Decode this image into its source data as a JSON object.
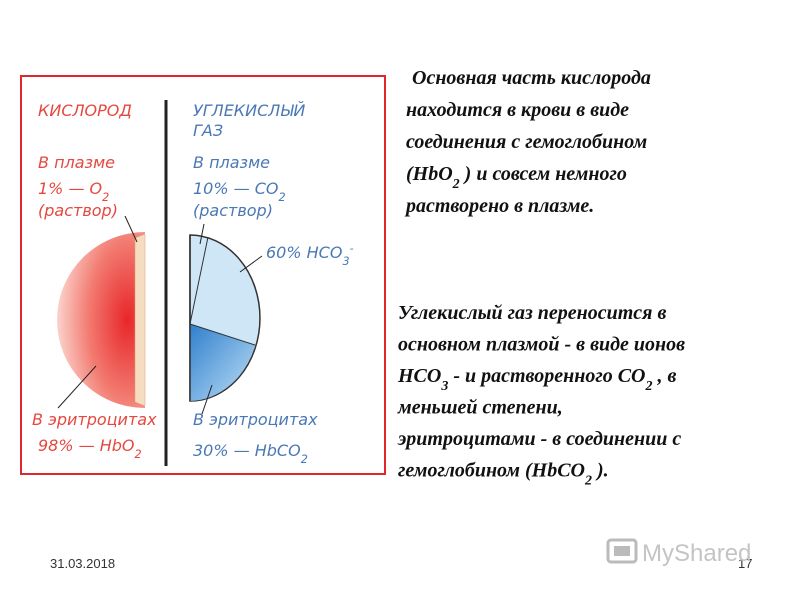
{
  "diagram": {
    "oxygen": {
      "title": [
        {
          "text": "КИСЛОРОД"
        }
      ],
      "plasma": [
        {
          "text": "В плазме"
        }
      ],
      "plasma_share": [
        {
          "text": "1% — O"
        },
        {
          "text": "2",
          "pos": "sub"
        }
      ],
      "plasma_form": [
        {
          "text": "(раствор)"
        }
      ],
      "cells": [
        {
          "text": "В эритроцитах"
        }
      ],
      "cells_share": [
        {
          "text": "98% — HbO"
        },
        {
          "text": "2",
          "pos": "sub"
        }
      ]
    },
    "carbon_dioxide": {
      "title": [
        {
          "text": "УГЛЕКИСЛЫЙ"
        }
      ],
      "title_2": [
        {
          "text": "ГАЗ"
        }
      ],
      "plasma": [
        {
          "text": "В плазме"
        }
      ],
      "plasma_share": [
        {
          "text": "10% — CO"
        },
        {
          "text": "2",
          "pos": "sub"
        }
      ],
      "plasma_form": [
        {
          "text": "(раствор)"
        }
      ],
      "bicarbonate": [
        {
          "text": "60% HCO"
        },
        {
          "text": "3",
          "pos": "sub"
        },
        {
          "text": "-",
          "pos": "sup"
        }
      ],
      "cells": [
        {
          "text": "В эритроцитах"
        }
      ],
      "cells_share": [
        {
          "text": "30% — HbCO"
        },
        {
          "text": "2",
          "pos": "sub"
        }
      ]
    }
  },
  "text": {
    "oxygen_paragraph": [
      [
        {
          "text": "Основная часть кислорода"
        }
      ],
      [
        {
          "text": "находится в крови в виде"
        }
      ],
      [
        {
          "text": "соединения с гемоглобином"
        }
      ],
      [
        {
          "text": "(HbO"
        },
        {
          "text": "2",
          "pos": "sub"
        },
        {
          "text": " ) и совсем немного"
        }
      ],
      [
        {
          "text": "растворено в плазме."
        }
      ]
    ],
    "carbon_paragraph": [
      [
        {
          "text": "Углекислый газ переносится в"
        }
      ],
      [
        {
          "text": "основном плазмой - в виде ионов"
        }
      ],
      [
        {
          "text": "HCO"
        },
        {
          "text": "3",
          "pos": "sub"
        },
        {
          "text": " - и растворенного CO"
        },
        {
          "text": "2",
          "pos": "sub"
        },
        {
          "text": " , в"
        }
      ],
      [
        {
          "text": "меньшей степени,"
        }
      ],
      [
        {
          "text": "эритроцитами - в соединении с"
        }
      ],
      [
        {
          "text": "гемоглобином (HbCO"
        },
        {
          "text": "2",
          "pos": "sub"
        },
        {
          "text": " )."
        }
      ]
    ]
  },
  "footer": {
    "date": "31.03.2018",
    "page": "17",
    "watermark": "MyShared"
  }
}
